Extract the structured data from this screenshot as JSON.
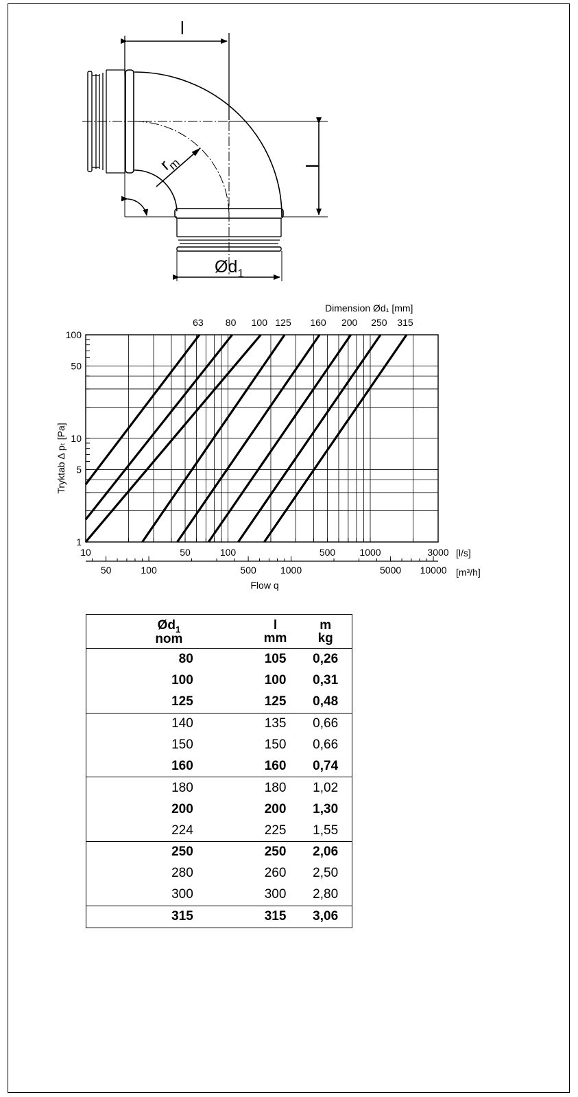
{
  "drawing": {
    "dim_l_top": "l",
    "dim_l_right": "l",
    "radius_label": "r",
    "radius_sub": "m",
    "diameter_label": "Ød",
    "diameter_sub": "1"
  },
  "chart_data": {
    "type": "line",
    "title": "Dimension Ød₁ [mm]",
    "xlabel": "Flow q",
    "ylabel": "Tryktab Δ pₜ [Pa]",
    "x_unit_primary": "[l/s]",
    "x_unit_secondary": "[m³/h]",
    "xscale": "log",
    "yscale": "log",
    "xlim": [
      10,
      3000
    ],
    "ylim": [
      1,
      100
    ],
    "x_ticks_primary": [
      "10",
      "50",
      "100",
      "500",
      "1000",
      "3000"
    ],
    "x_ticks_secondary": [
      "50",
      "100",
      "500",
      "1000",
      "5000",
      "10000"
    ],
    "y_ticks": [
      "100",
      "50",
      "10",
      "5",
      "1"
    ],
    "grid": true,
    "series": [
      {
        "name": "63",
        "x": [
          10,
          63
        ],
        "y": [
          3.6,
          100
        ]
      },
      {
        "name": "80",
        "x": [
          10,
          107
        ],
        "y": [
          1.65,
          100
        ]
      },
      {
        "name": "100",
        "x": [
          10,
          170
        ],
        "y": [
          1,
          100
        ]
      },
      {
        "name": "125",
        "x": [
          25,
          250
        ],
        "y": [
          1,
          100
        ]
      },
      {
        "name": "160",
        "x": [
          44,
          440
        ],
        "y": [
          1,
          100
        ]
      },
      {
        "name": "200",
        "x": [
          73,
          730
        ],
        "y": [
          1,
          100
        ]
      },
      {
        "name": "250",
        "x": [
          118,
          1180
        ],
        "y": [
          1,
          100
        ]
      },
      {
        "name": "315",
        "x": [
          180,
          1800
        ],
        "y": [
          1,
          100
        ]
      }
    ]
  },
  "table": {
    "headers": [
      {
        "top": "Ød",
        "top_sub": "1",
        "bottom": "nom"
      },
      {
        "top": "l",
        "top_sub": "",
        "bottom": "mm"
      },
      {
        "top": "m",
        "top_sub": "",
        "bottom": "kg"
      }
    ],
    "rows": [
      {
        "d": "80",
        "l": "105",
        "m": "0,26",
        "bold": true,
        "group_end": false
      },
      {
        "d": "100",
        "l": "100",
        "m": "0,31",
        "bold": true,
        "group_end": false
      },
      {
        "d": "125",
        "l": "125",
        "m": "0,48",
        "bold": true,
        "group_end": true
      },
      {
        "d": "140",
        "l": "135",
        "m": "0,66",
        "bold": false,
        "group_end": false
      },
      {
        "d": "150",
        "l": "150",
        "m": "0,66",
        "bold": false,
        "group_end": false
      },
      {
        "d": "160",
        "l": "160",
        "m": "0,74",
        "bold": true,
        "group_end": true
      },
      {
        "d": "180",
        "l": "180",
        "m": "1,02",
        "bold": false,
        "group_end": false
      },
      {
        "d": "200",
        "l": "200",
        "m": "1,30",
        "bold": true,
        "group_end": false
      },
      {
        "d": "224",
        "l": "225",
        "m": "1,55",
        "bold": false,
        "group_end": true
      },
      {
        "d": "250",
        "l": "250",
        "m": "2,06",
        "bold": true,
        "group_end": false
      },
      {
        "d": "280",
        "l": "260",
        "m": "2,50",
        "bold": false,
        "group_end": false
      },
      {
        "d": "300",
        "l": "300",
        "m": "2,80",
        "bold": false,
        "group_end": true
      },
      {
        "d": "315",
        "l": "315",
        "m": "3,06",
        "bold": true,
        "group_end": false
      }
    ]
  }
}
